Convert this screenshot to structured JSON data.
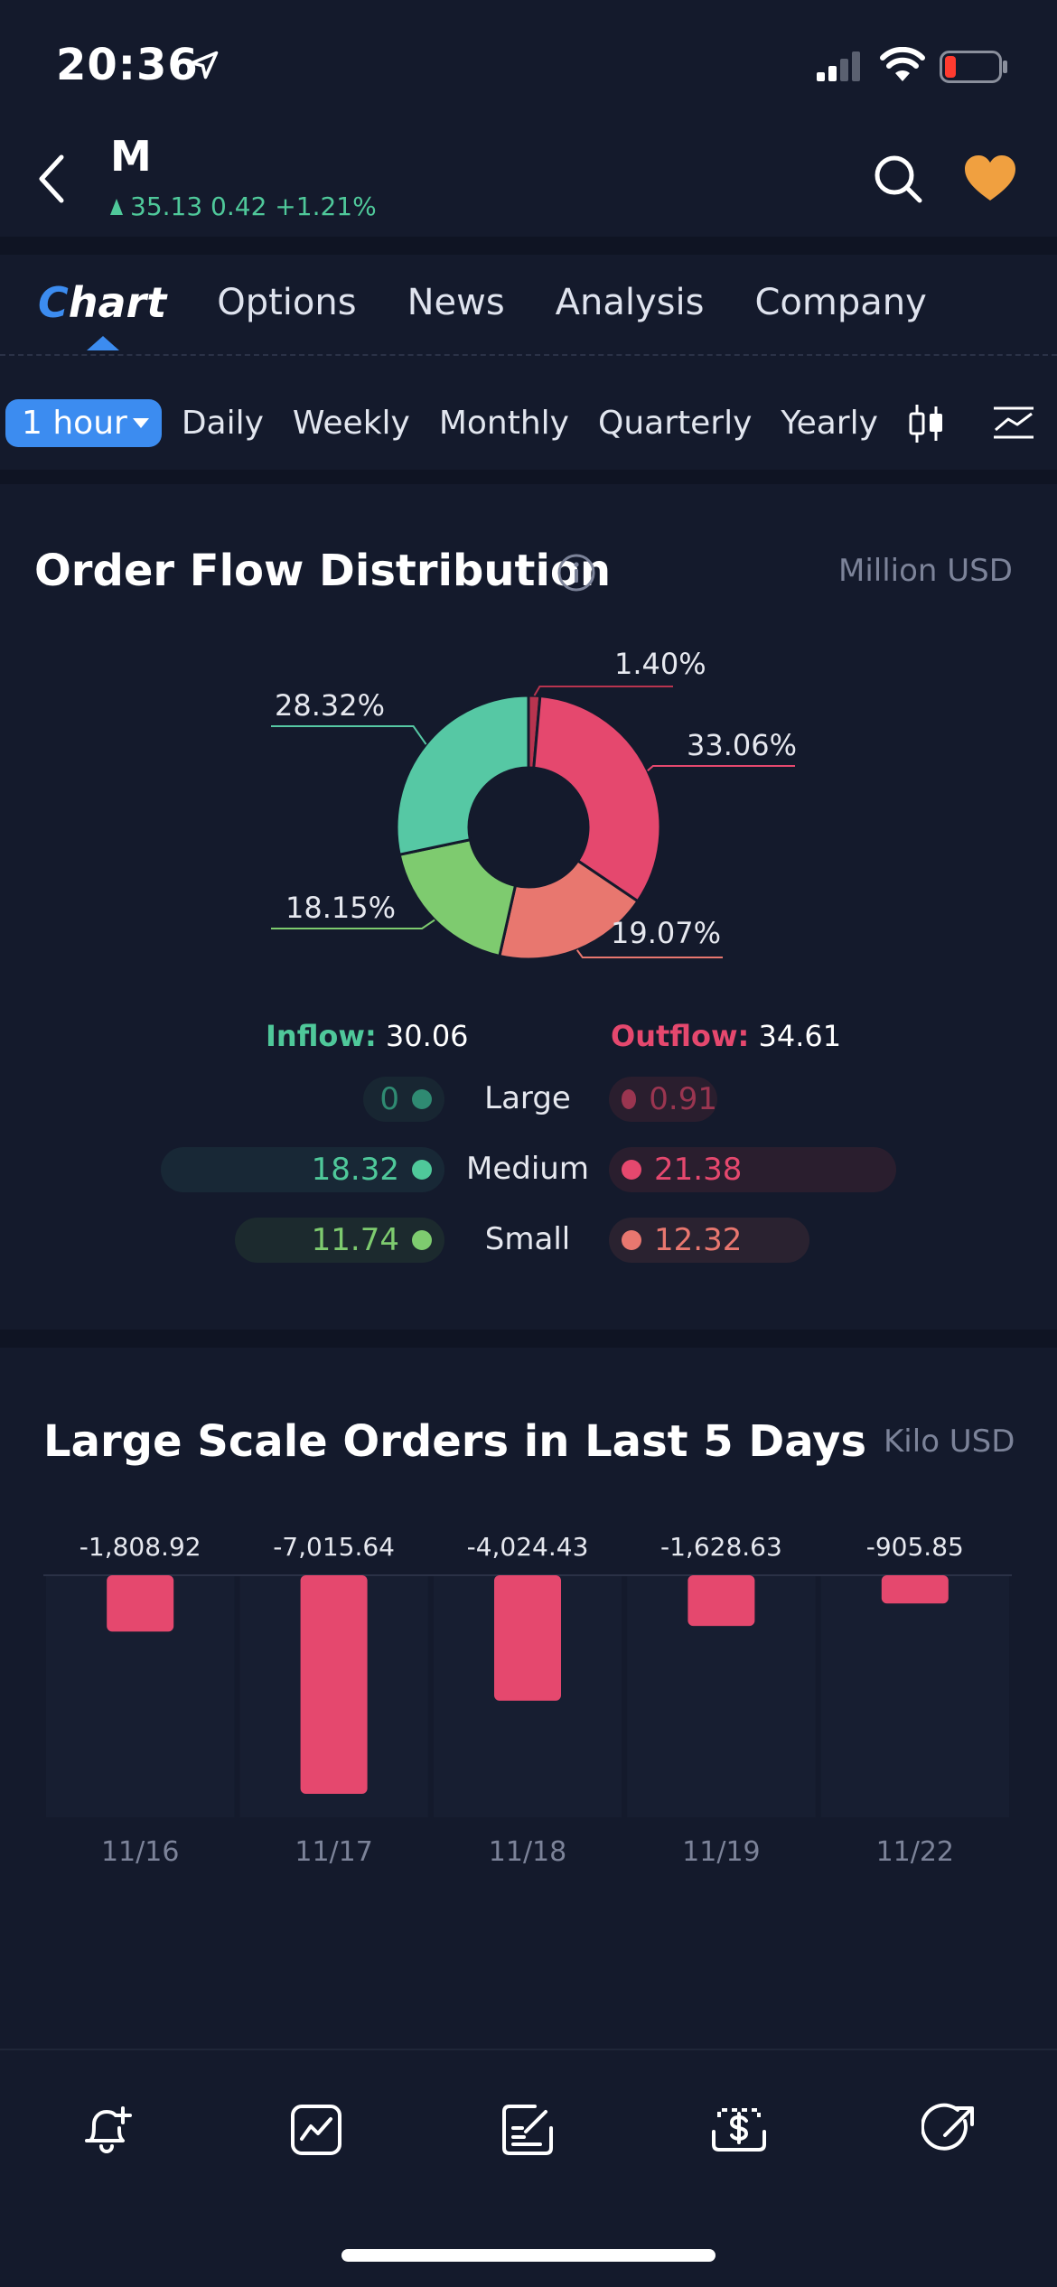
{
  "status_bar": {
    "time": "20:36"
  },
  "header": {
    "ticker": "M",
    "quote": "35.13 0.42 +1.21%"
  },
  "tabs": [
    {
      "label": "Chart"
    },
    {
      "label": "Options"
    },
    {
      "label": "News"
    },
    {
      "label": "Analysis"
    },
    {
      "label": "Company"
    }
  ],
  "periods": {
    "selected": "1 hour",
    "items": [
      "Daily",
      "Weekly",
      "Monthly",
      "Quarterly",
      "Yearly"
    ]
  },
  "order_flow": {
    "title": "Order Flow Distribution",
    "unit": "Million USD",
    "inflow_label": "Inflow:",
    "inflow_value": "30.06",
    "outflow_label": "Outflow:",
    "outflow_value": "34.61",
    "rows": [
      {
        "label": "Large",
        "inflow": "0",
        "outflow": "0.91"
      },
      {
        "label": "Medium",
        "inflow": "18.32",
        "outflow": "21.38"
      },
      {
        "label": "Small",
        "inflow": "11.74",
        "outflow": "12.32"
      }
    ]
  },
  "chart_data": [
    {
      "type": "pie",
      "donut": true,
      "slices": [
        {
          "label": "1.40%",
          "value": 1.4,
          "color": "#b8344f"
        },
        {
          "label": "33.06%",
          "value": 33.06,
          "color": "#e5486e"
        },
        {
          "label": "19.07%",
          "value": 19.07,
          "color": "#e8776f"
        },
        {
          "label": "18.15%",
          "value": 18.15,
          "color": "#7ecb6f"
        },
        {
          "label": "28.32%",
          "value": 28.32,
          "color": "#56c8a4"
        }
      ]
    },
    {
      "type": "bar",
      "title": "Large Scale Orders in Last 5 Days",
      "unit": "Kilo USD",
      "categories": [
        "11/16",
        "11/17",
        "11/18",
        "11/19",
        "11/22"
      ],
      "values": [
        -1808.92,
        -7015.64,
        -4024.43,
        -1628.63,
        -905.85
      ],
      "value_labels": [
        "-1,808.92",
        "-7,015.64",
        "-4,024.43",
        "-1,628.63",
        "-905.85"
      ],
      "color": "#e5486e"
    }
  ],
  "colors": {
    "background": "#141a2c",
    "accent": "#3c8cf0",
    "inflow": "#4fc89a",
    "outflow": "#e5486e",
    "favorite": "#f0a040"
  },
  "toolbar": {
    "icons": [
      "bell-plus-icon",
      "chart-icon",
      "note-edit-icon",
      "dollar-tray-icon",
      "share-icon"
    ]
  }
}
